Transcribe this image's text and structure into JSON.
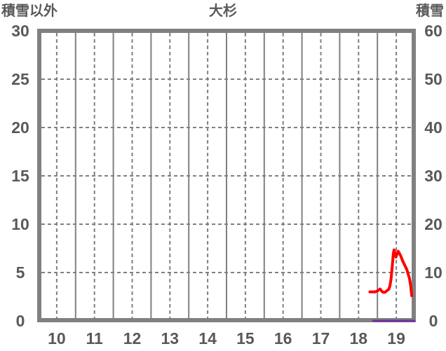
{
  "colors": {
    "background": "#ffffff",
    "frame_and_grid": "#808080",
    "label_text": "#595959"
  },
  "chart_data": {
    "type": "line",
    "title": "大杉",
    "x_axis": {
      "range": [
        9.5,
        19.5
      ],
      "tick_values": [
        10,
        11,
        12,
        13,
        14,
        15,
        16,
        17,
        18,
        19
      ],
      "tick_labels": [
        "10",
        "11",
        "12",
        "13",
        "14",
        "15",
        "16",
        "17",
        "18",
        "19"
      ],
      "dashed_gridlines_at": [
        10,
        11,
        12,
        13,
        14,
        15,
        16,
        17,
        18,
        19
      ],
      "solid_gridlines_at": [
        10.5,
        11.5,
        12.5,
        13.5,
        14.5,
        15.5,
        16.5,
        17.5,
        18.5
      ]
    },
    "left_axis": {
      "title": "積雪以外",
      "range": [
        0,
        30
      ],
      "tick_values": [
        0,
        5,
        10,
        15,
        20,
        25,
        30
      ],
      "tick_labels": [
        "0",
        "5",
        "10",
        "15",
        "20",
        "25",
        "30"
      ],
      "dashed_gridlines_at": [
        5,
        10,
        15,
        20,
        25
      ]
    },
    "right_axis": {
      "title": "積雪",
      "range": [
        0,
        60
      ],
      "tick_values": [
        0,
        10,
        20,
        30,
        40,
        50,
        60
      ],
      "tick_labels": [
        "0",
        "10",
        "20",
        "30",
        "40",
        "50",
        "60"
      ]
    },
    "grid": {
      "on": true,
      "dash_pattern": [
        5,
        4
      ],
      "line_width": 2,
      "frame_width": 6
    },
    "legend": {
      "visible": false
    },
    "series": [
      {
        "id": "red-line-series",
        "axis": "left",
        "color": "#ff0000",
        "width": 4,
        "points": [
          [
            18.3,
            3.0
          ],
          [
            18.37,
            3.0
          ],
          [
            18.44,
            3.0
          ],
          [
            18.5,
            3.1
          ],
          [
            18.57,
            3.3
          ],
          [
            18.61,
            3.1
          ],
          [
            18.65,
            2.95
          ],
          [
            18.7,
            2.95
          ],
          [
            18.76,
            3.15
          ],
          [
            18.8,
            3.25
          ],
          [
            18.83,
            3.6
          ],
          [
            18.86,
            4.3
          ],
          [
            18.89,
            5.5
          ],
          [
            18.92,
            6.9
          ],
          [
            18.94,
            7.35
          ],
          [
            18.99,
            6.6
          ],
          [
            19.05,
            7.2
          ],
          [
            19.11,
            6.8
          ],
          [
            19.17,
            6.2
          ],
          [
            19.22,
            5.8
          ],
          [
            19.28,
            5.3
          ],
          [
            19.31,
            4.9
          ],
          [
            19.35,
            4.4
          ],
          [
            19.38,
            3.7
          ],
          [
            19.41,
            2.6
          ]
        ]
      },
      {
        "id": "snow-depth-purple-series",
        "axis": "right",
        "color": "#7030a0",
        "width": 3,
        "points": [
          [
            18.39,
            0
          ],
          [
            19.48,
            0
          ]
        ]
      }
    ]
  }
}
